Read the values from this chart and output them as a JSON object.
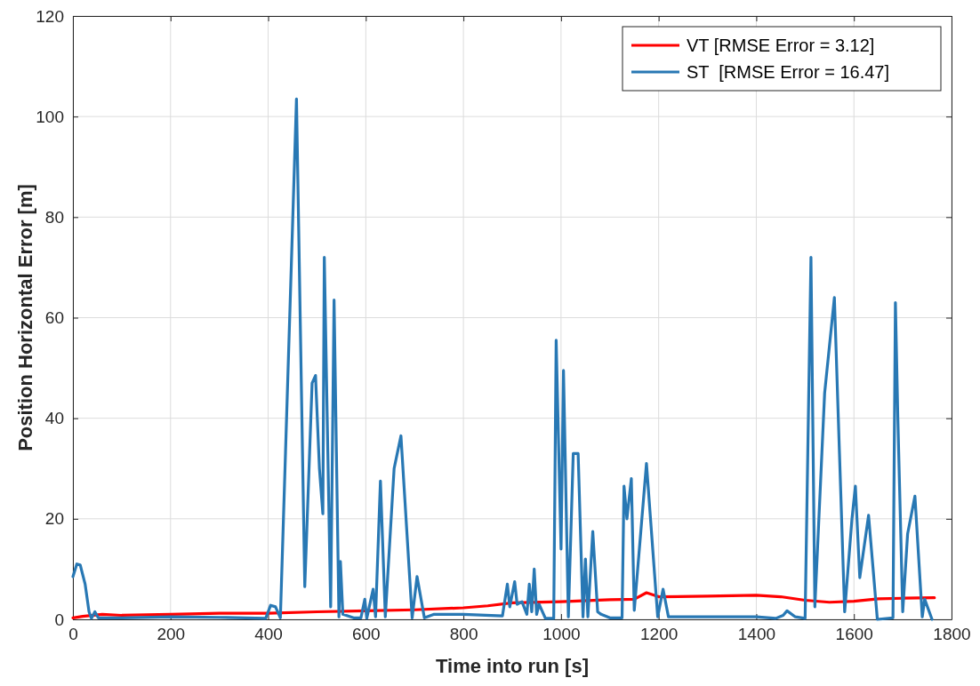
{
  "chart_data": {
    "type": "line",
    "xlabel": "Time into run [s]",
    "ylabel": "Position Horizontal Error [m]",
    "xlim": [
      0,
      1800
    ],
    "ylim": [
      0,
      120
    ],
    "xticks": [
      0,
      200,
      400,
      600,
      800,
      1000,
      1200,
      1400,
      1600,
      1800
    ],
    "yticks": [
      0,
      20,
      40,
      60,
      80,
      100,
      120
    ],
    "grid": true,
    "legend": "top right",
    "series": [
      {
        "name": "VT [RMSE Error = 3.12]",
        "color": "#ff0000",
        "x": [
          0,
          20,
          60,
          100,
          200,
          300,
          400,
          500,
          600,
          700,
          800,
          850,
          900,
          1000,
          1100,
          1150,
          1175,
          1200,
          1300,
          1400,
          1450,
          1500,
          1550,
          1600,
          1650,
          1700,
          1765
        ],
        "values": [
          0.3,
          0.6,
          1,
          0.8,
          1,
          1.2,
          1.2,
          1.5,
          1.7,
          1.9,
          2.3,
          2.7,
          3.3,
          3.5,
          3.9,
          4,
          5.3,
          4.5,
          4.6,
          4.8,
          4.5,
          3.8,
          3.4,
          3.6,
          4.1,
          4.2,
          4.3
        ]
      },
      {
        "name": "ST  [RMSE Error = 16.47]",
        "color": "#2878b4",
        "x": [
          0,
          8,
          15,
          25,
          33,
          38,
          45,
          52,
          100,
          200,
          300,
          395,
          405,
          415,
          425,
          458,
          475,
          490,
          497,
          505,
          512,
          515,
          528,
          535,
          545,
          548,
          553,
          575,
          590,
          598,
          602,
          615,
          620,
          630,
          640,
          658,
          672,
          695,
          705,
          720,
          740,
          800,
          880,
          890,
          895,
          905,
          910,
          920,
          930,
          935,
          940,
          945,
          950,
          955,
          968,
          985,
          990,
          1000,
          1005,
          1015,
          1025,
          1035,
          1045,
          1050,
          1055,
          1065,
          1075,
          1082,
          1100,
          1125,
          1129,
          1135,
          1144,
          1150,
          1175,
          1198,
          1209,
          1220,
          1300,
          1400,
          1440,
          1455,
          1463,
          1480,
          1500,
          1512,
          1520,
          1540,
          1560,
          1581,
          1596,
          1603,
          1612,
          1630,
          1648,
          1680,
          1685,
          1690,
          1700,
          1710,
          1725,
          1740,
          1745,
          1760
        ],
        "values": [
          8.5,
          11,
          10.8,
          7,
          1.5,
          0.2,
          1.5,
          0.3,
          0.3,
          0.5,
          0.4,
          0.2,
          2.8,
          2.5,
          0.3,
          103.5,
          6.5,
          47,
          48.5,
          30,
          21,
          72,
          2.5,
          63.5,
          0.5,
          11.5,
          1,
          0.3,
          0.3,
          4,
          0.2,
          6,
          0.5,
          27.5,
          0.5,
          30,
          36.5,
          0.3,
          8.5,
          0.3,
          1,
          1,
          0.7,
          7,
          2.5,
          7.5,
          3,
          3.5,
          1,
          7,
          1.5,
          10,
          1,
          3,
          0.2,
          0.2,
          55.5,
          14,
          49.5,
          0.5,
          33,
          33,
          0.5,
          12,
          0.5,
          17.5,
          1.5,
          1,
          0.3,
          0.3,
          26.5,
          20,
          28,
          1.8,
          31,
          0.5,
          6,
          0.5,
          0.5,
          0.5,
          0.2,
          0.8,
          1.7,
          0.5,
          0.2,
          72,
          2.5,
          45,
          64,
          1.5,
          20,
          26.5,
          8.3,
          20.7,
          0,
          0.3,
          63,
          40,
          1.5,
          17,
          24.5,
          0.5,
          4,
          0
        ]
      }
    ]
  }
}
